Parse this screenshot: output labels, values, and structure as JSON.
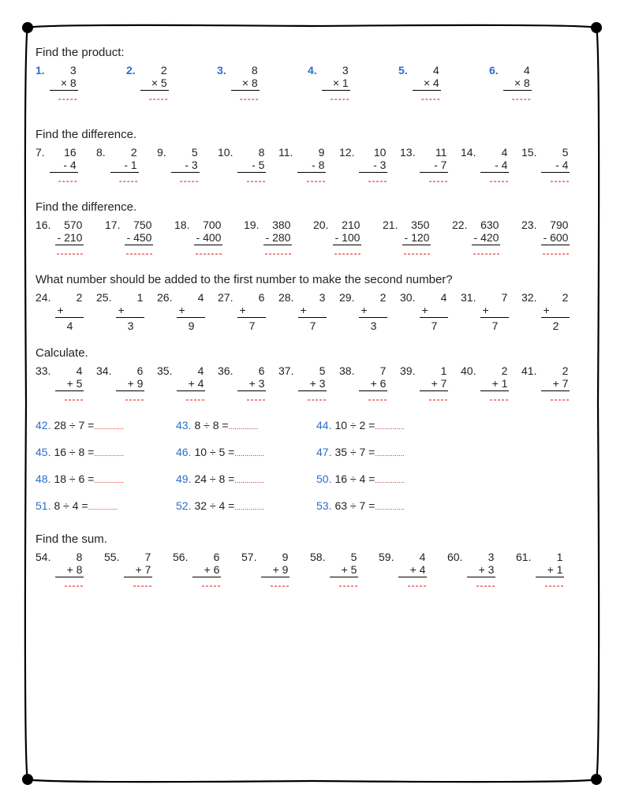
{
  "colors": {
    "problem_number_blue": "#2a6fc9",
    "answer_blank_red": "#d00000",
    "text": "#222222",
    "border": "#000000",
    "background": "#ffffff"
  },
  "typography": {
    "body_fontsize_pt": 11,
    "title_fontsize_pt": 11,
    "font_family": "Arial"
  },
  "sections": [
    {
      "title": "Find the product:",
      "type": "vertical",
      "blue_numbers": true,
      "problems": [
        {
          "n": "1.",
          "a": "3",
          "op": "× 8"
        },
        {
          "n": "2.",
          "a": "2",
          "op": "× 5"
        },
        {
          "n": "3.",
          "a": "8",
          "op": "× 8"
        },
        {
          "n": "4.",
          "a": "3",
          "op": "× 1"
        },
        {
          "n": "5.",
          "a": "4",
          "op": "× 4"
        },
        {
          "n": "6.",
          "a": "4",
          "op": "× 8"
        }
      ],
      "blank": "-----"
    },
    {
      "title": "Find the difference.",
      "type": "vertical",
      "blue_numbers": false,
      "problems": [
        {
          "n": "7.",
          "a": "16",
          "op": "- 4"
        },
        {
          "n": "8.",
          "a": "2",
          "op": "- 1"
        },
        {
          "n": "9.",
          "a": "5",
          "op": "- 3"
        },
        {
          "n": "10.",
          "a": "8",
          "op": "- 5"
        },
        {
          "n": "11.",
          "a": "9",
          "op": "- 8"
        },
        {
          "n": "12.",
          "a": "10",
          "op": "- 3"
        },
        {
          "n": "13.",
          "a": "11",
          "op": "- 7"
        },
        {
          "n": "14.",
          "a": "4",
          "op": "- 4"
        },
        {
          "n": "15.",
          "a": "5",
          "op": "- 4"
        }
      ],
      "blank": "-----"
    },
    {
      "title": "Find the difference.",
      "type": "vertical",
      "blue_numbers": false,
      "problems": [
        {
          "n": "16.",
          "a": "570",
          "op": "- 210"
        },
        {
          "n": "17.",
          "a": "750",
          "op": "- 450"
        },
        {
          "n": "18.",
          "a": "700",
          "op": "- 400"
        },
        {
          "n": "19.",
          "a": "380",
          "op": "- 280"
        },
        {
          "n": "20.",
          "a": "210",
          "op": "- 100"
        },
        {
          "n": "21.",
          "a": "350",
          "op": "- 120"
        },
        {
          "n": "22.",
          "a": "630",
          "op": "- 420"
        },
        {
          "n": "23.",
          "a": "790",
          "op": "- 600"
        }
      ],
      "blank": "-------"
    },
    {
      "title": "What number should be added to the first number to make the second number?",
      "type": "vertical_result",
      "blue_numbers": false,
      "problems": [
        {
          "n": "24.",
          "a": "2",
          "op": "+",
          "r": "4"
        },
        {
          "n": "25.",
          "a": "1",
          "op": "+",
          "r": "3"
        },
        {
          "n": "26.",
          "a": "4",
          "op": "+",
          "r": "9"
        },
        {
          "n": "27.",
          "a": "6",
          "op": "+",
          "r": "7"
        },
        {
          "n": "28.",
          "a": "3",
          "op": "+",
          "r": "7"
        },
        {
          "n": "29.",
          "a": "2",
          "op": "+",
          "r": "3"
        },
        {
          "n": "30.",
          "a": "4",
          "op": "+",
          "r": "7"
        },
        {
          "n": "31.",
          "a": "7",
          "op": "+",
          "r": "7"
        },
        {
          "n": "32.",
          "a": "2",
          "op": "+",
          "r": "2"
        }
      ]
    },
    {
      "title": "Calculate.",
      "type": "vertical",
      "blue_numbers": false,
      "problems": [
        {
          "n": "33.",
          "a": "4",
          "op": "+ 5"
        },
        {
          "n": "34.",
          "a": "6",
          "op": "+ 9"
        },
        {
          "n": "35.",
          "a": "4",
          "op": "+ 4"
        },
        {
          "n": "36.",
          "a": "6",
          "op": "+ 3"
        },
        {
          "n": "37.",
          "a": "5",
          "op": "+ 3"
        },
        {
          "n": "38.",
          "a": "7",
          "op": "+ 6"
        },
        {
          "n": "39.",
          "a": "1",
          "op": "+ 7"
        },
        {
          "n": "40.",
          "a": "2",
          "op": "+ 1"
        },
        {
          "n": "41.",
          "a": "2",
          "op": "+ 7"
        }
      ],
      "blank": "-----"
    },
    {
      "title": "",
      "type": "horizontal",
      "blue_numbers": true,
      "problems": [
        {
          "n": "42.",
          "expr": "28 ÷ 7 ="
        },
        {
          "n": "43.",
          "expr": "8 ÷ 8 ="
        },
        {
          "n": "44.",
          "expr": "10 ÷ 2 ="
        },
        {
          "n": "45.",
          "expr": "16 ÷ 8 ="
        },
        {
          "n": "46.",
          "expr": "10 ÷ 5 ="
        },
        {
          "n": "47.",
          "expr": "35 ÷ 7 ="
        },
        {
          "n": "48.",
          "expr": "18 ÷ 6 ="
        },
        {
          "n": "49.",
          "expr": "24 ÷ 8 ="
        },
        {
          "n": "50.",
          "expr": "16 ÷ 4 ="
        },
        {
          "n": "51.",
          "expr": "8 ÷ 4 ="
        },
        {
          "n": "52.",
          "expr": "32 ÷ 4 ="
        },
        {
          "n": "53.",
          "expr": "63 ÷ 7 ="
        }
      ],
      "blank": "..............."
    },
    {
      "title": "Find the sum.",
      "type": "vertical",
      "blue_numbers": false,
      "problems": [
        {
          "n": "54.",
          "a": "8",
          "op": "+ 8"
        },
        {
          "n": "55.",
          "a": "7",
          "op": "+ 7"
        },
        {
          "n": "56.",
          "a": "6",
          "op": "+ 6"
        },
        {
          "n": "57.",
          "a": "9",
          "op": "+ 9"
        },
        {
          "n": "58.",
          "a": "5",
          "op": "+ 5"
        },
        {
          "n": "59.",
          "a": "4",
          "op": "+ 4"
        },
        {
          "n": "60.",
          "a": "3",
          "op": "+ 3"
        },
        {
          "n": "61.",
          "a": "1",
          "op": "+ 1"
        }
      ],
      "blank": "-----"
    }
  ]
}
